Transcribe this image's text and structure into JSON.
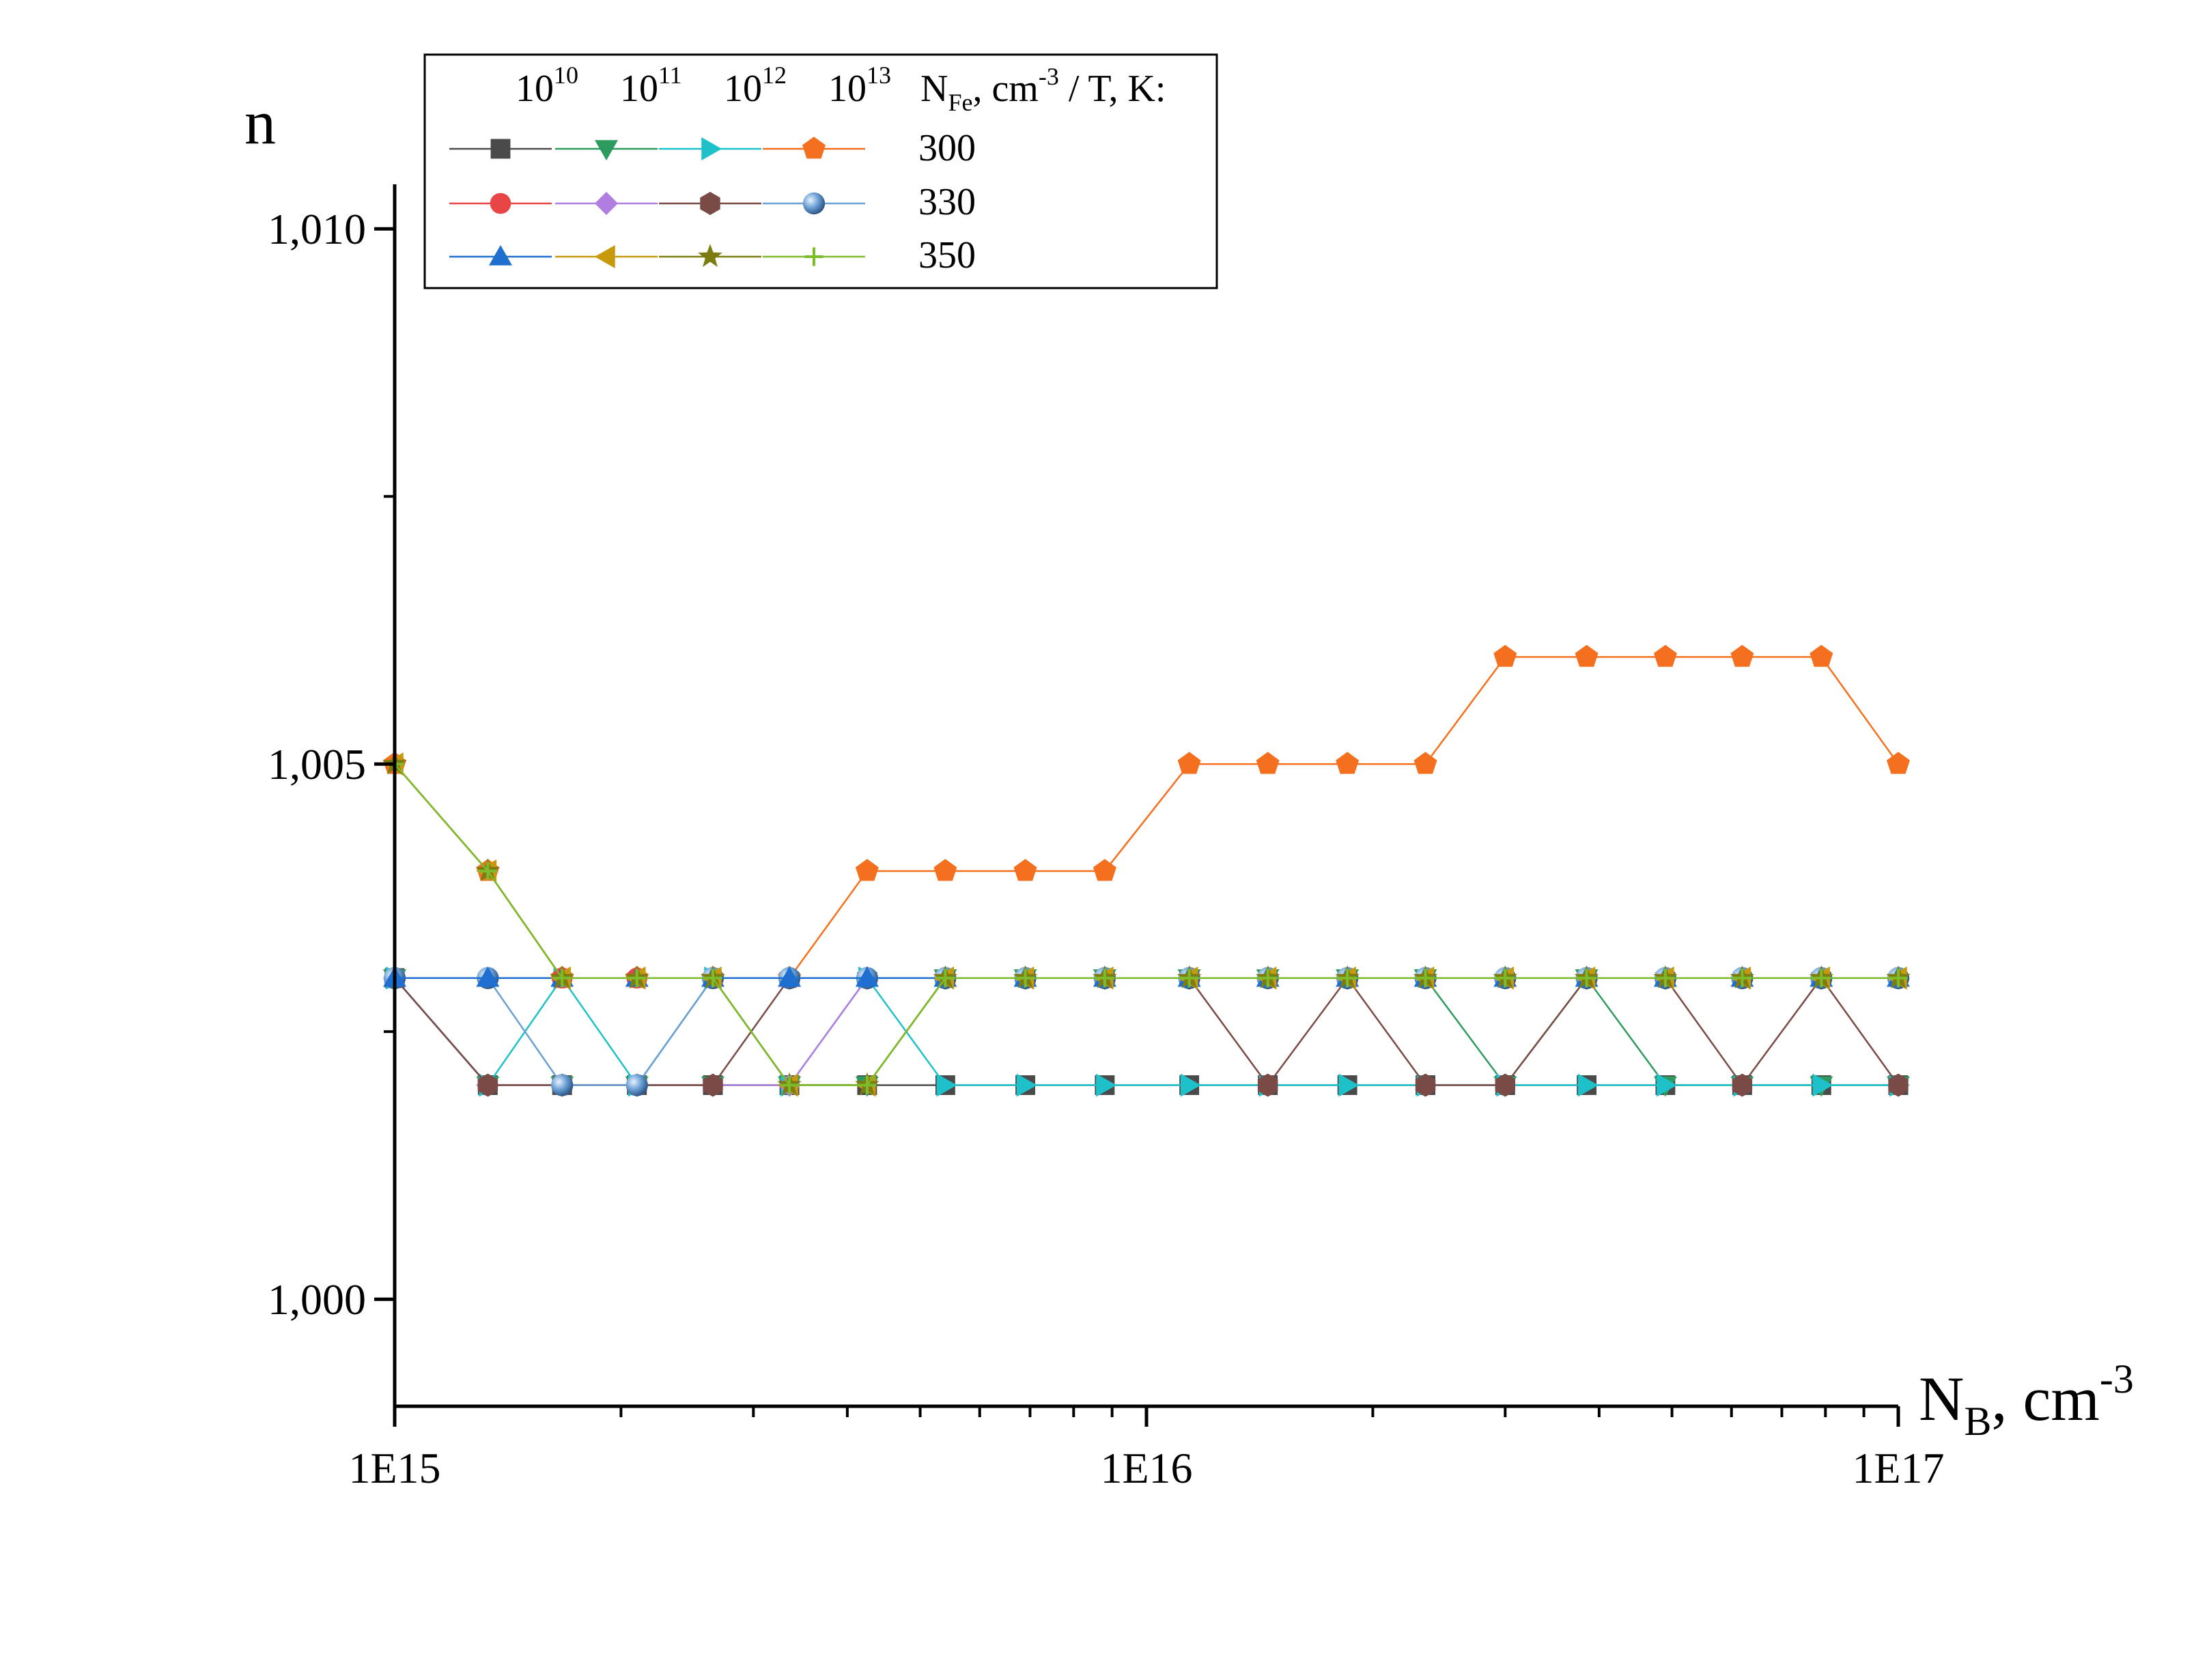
{
  "chart_data": {
    "type": "line",
    "xscale": "log",
    "xlim": [
      1000000000000000.0,
      1e+17
    ],
    "ylim": [
      0.999,
      1.0115
    ],
    "xlabel": {
      "main": "N",
      "sub": "B",
      "rest": ", cm",
      "sup": "-3"
    },
    "ylabel": "n",
    "x_tick_labels": [
      {
        "value": 1000000000000000.0,
        "label": "1E15"
      },
      {
        "value": 1e+16,
        "label": "1E16"
      },
      {
        "value": 1e+17,
        "label": "1E17"
      }
    ],
    "y_tick_labels": [
      {
        "value": 1.0,
        "label": "1,000"
      },
      {
        "value": 1.005,
        "label": "1,005"
      },
      {
        "value": 1.01,
        "label": "1,010"
      }
    ],
    "y_minor_ticks": [
      1.0075,
      1.0025
    ],
    "legend": {
      "placement": "top-left",
      "header_columns": [
        {
          "base": "10",
          "sup": "10"
        },
        {
          "base": "10",
          "sup": "11"
        },
        {
          "base": "10",
          "sup": "12"
        },
        {
          "base": "10",
          "sup": "13"
        }
      ],
      "header_label": {
        "main": "N",
        "sub": "Fe",
        "rest": ", cm",
        "sup": "-3",
        "tail": " /  T, K:"
      },
      "rows": [
        "300",
        "330",
        "350"
      ]
    },
    "x": [
      1000000000000000.0,
      1330000000000000.0,
      1670000000000000.0,
      2100000000000000.0,
      2650000000000000.0,
      3350000000000000.0,
      4250000000000000.0,
      5400000000000000.0,
      6900000000000000.0,
      8800000000000000.0,
      1.14e+16,
      1.45e+16,
      1.85e+16,
      2.35e+16,
      3e+16,
      3.85e+16,
      4.9e+16,
      6.2e+16,
      7.9e+16,
      1e+17
    ],
    "series": [
      {
        "name": "300",
        "nfe": "10^10",
        "color": "#4a4a4a",
        "marker": "square",
        "values": [
          1.003,
          1.002,
          1.002,
          1.002,
          1.002,
          1.002,
          1.002,
          1.002,
          1.002,
          1.002,
          1.002,
          1.002,
          1.002,
          1.002,
          1.002,
          1.002,
          1.002,
          1.002,
          1.002,
          1.002
        ]
      },
      {
        "name": "300",
        "nfe": "10^11",
        "color": "#2e9b5e",
        "marker": "triangle-down",
        "values": [
          1.003,
          1.002,
          1.002,
          1.002,
          1.002,
          1.002,
          1.002,
          1.003,
          1.003,
          1.003,
          1.003,
          1.003,
          1.003,
          1.003,
          1.002,
          1.003,
          1.002,
          1.002,
          1.002,
          1.002
        ]
      },
      {
        "name": "300",
        "nfe": "10^12",
        "color": "#1ec1c9",
        "marker": "triangle-right",
        "values": [
          1.003,
          1.002,
          1.003,
          1.002,
          1.003,
          1.002,
          1.003,
          1.002,
          1.002,
          1.002,
          1.002,
          1.002,
          1.002,
          1.002,
          1.002,
          1.002,
          1.002,
          1.002,
          1.002,
          1.002
        ]
      },
      {
        "name": "300",
        "nfe": "10^13",
        "color": "#f4701e",
        "marker": "pentagon",
        "values": [
          1.005,
          1.004,
          1.003,
          1.003,
          1.003,
          1.003,
          1.004,
          1.004,
          1.004,
          1.004,
          1.005,
          1.005,
          1.005,
          1.005,
          1.006,
          1.006,
          1.006,
          1.006,
          1.006,
          1.005
        ]
      },
      {
        "name": "330",
        "nfe": "10^10",
        "color": "#e84646",
        "marker": "circle",
        "values": [
          1.003,
          1.003,
          1.003,
          1.003,
          1.003,
          1.003,
          1.003,
          1.003,
          1.003,
          1.003,
          1.003,
          1.003,
          1.003,
          1.003,
          1.003,
          1.003,
          1.003,
          1.003,
          1.003,
          1.003
        ]
      },
      {
        "name": "330",
        "nfe": "10^11",
        "color": "#b07ee0",
        "marker": "diamond",
        "values": [
          1.003,
          1.002,
          1.002,
          1.002,
          1.002,
          1.002,
          1.003,
          1.003,
          1.003,
          1.003,
          1.003,
          1.003,
          1.003,
          1.003,
          1.003,
          1.003,
          1.003,
          1.003,
          1.003,
          1.003
        ]
      },
      {
        "name": "330",
        "nfe": "10^12",
        "color": "#7a4b46",
        "marker": "hexagon",
        "values": [
          1.003,
          1.002,
          1.002,
          1.002,
          1.002,
          1.003,
          1.003,
          1.003,
          1.003,
          1.003,
          1.003,
          1.002,
          1.003,
          1.002,
          1.002,
          1.003,
          1.003,
          1.002,
          1.003,
          1.002
        ]
      },
      {
        "name": "330",
        "nfe": "10^13",
        "color": "#6b9fd4",
        "marker": "sphere",
        "values": [
          1.003,
          1.003,
          1.002,
          1.002,
          1.003,
          1.003,
          1.003,
          1.003,
          1.003,
          1.003,
          1.003,
          1.003,
          1.003,
          1.003,
          1.003,
          1.003,
          1.003,
          1.003,
          1.003,
          1.003
        ]
      },
      {
        "name": "350",
        "nfe": "10^10",
        "color": "#1f6fd1",
        "marker": "triangle-up",
        "values": [
          1.003,
          1.003,
          1.003,
          1.003,
          1.003,
          1.003,
          1.003,
          1.003,
          1.003,
          1.003,
          1.003,
          1.003,
          1.003,
          1.003,
          1.003,
          1.003,
          1.003,
          1.003,
          1.003,
          1.003
        ]
      },
      {
        "name": "350",
        "nfe": "10^11",
        "color": "#c79a0e",
        "marker": "triangle-left",
        "values": [
          1.005,
          1.004,
          1.003,
          1.003,
          1.003,
          1.002,
          1.002,
          1.003,
          1.003,
          1.003,
          1.003,
          1.003,
          1.003,
          1.003,
          1.003,
          1.003,
          1.003,
          1.003,
          1.003,
          1.003
        ]
      },
      {
        "name": "350",
        "nfe": "10^12",
        "color": "#7c7c10",
        "marker": "star",
        "values": [
          1.005,
          1.004,
          1.003,
          1.003,
          1.003,
          1.002,
          1.002,
          1.003,
          1.003,
          1.003,
          1.003,
          1.003,
          1.003,
          1.003,
          1.003,
          1.003,
          1.003,
          1.003,
          1.003,
          1.003
        ]
      },
      {
        "name": "350",
        "nfe": "10^13",
        "color": "#7dbb2c",
        "marker": "plus",
        "values": [
          1.005,
          1.004,
          1.003,
          1.003,
          1.003,
          1.002,
          1.002,
          1.003,
          1.003,
          1.003,
          1.003,
          1.003,
          1.003,
          1.003,
          1.003,
          1.003,
          1.003,
          1.003,
          1.003,
          1.003
        ]
      }
    ]
  }
}
